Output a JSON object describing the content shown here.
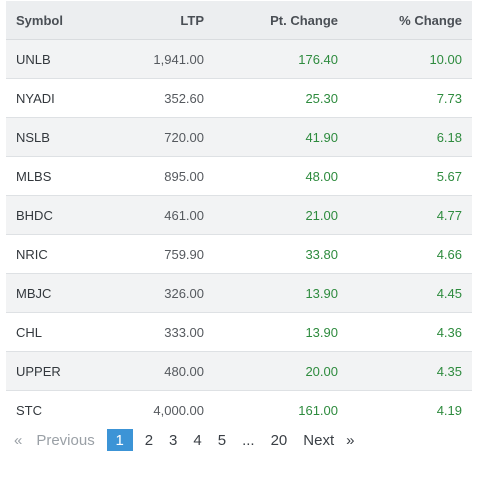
{
  "table": {
    "headers": {
      "symbol": "Symbol",
      "ltp": "LTP",
      "pt_change": "Pt. Change",
      "pct_change": "% Change"
    },
    "rows": [
      {
        "symbol": "UNLB",
        "ltp": "1,941.00",
        "pt_change": "176.40",
        "pct_change": "10.00"
      },
      {
        "symbol": "NYADI",
        "ltp": "352.60",
        "pt_change": "25.30",
        "pct_change": "7.73"
      },
      {
        "symbol": "NSLB",
        "ltp": "720.00",
        "pt_change": "41.90",
        "pct_change": "6.18"
      },
      {
        "symbol": "MLBS",
        "ltp": "895.00",
        "pt_change": "48.00",
        "pct_change": "5.67"
      },
      {
        "symbol": "BHDC",
        "ltp": "461.00",
        "pt_change": "21.00",
        "pct_change": "4.77"
      },
      {
        "symbol": "NRIC",
        "ltp": "759.90",
        "pt_change": "33.80",
        "pct_change": "4.66"
      },
      {
        "symbol": "MBJC",
        "ltp": "326.00",
        "pt_change": "13.90",
        "pct_change": "4.45"
      },
      {
        "symbol": "CHL",
        "ltp": "333.00",
        "pt_change": "13.90",
        "pct_change": "4.36"
      },
      {
        "symbol": "UPPER",
        "ltp": "480.00",
        "pt_change": "20.00",
        "pct_change": "4.35"
      },
      {
        "symbol": "STC",
        "ltp": "4,000.00",
        "pt_change": "161.00",
        "pct_change": "4.19"
      }
    ]
  },
  "pagination": {
    "prev_arrow": "«",
    "previous": "Previous",
    "pages": [
      "1",
      "2",
      "3",
      "4",
      "5"
    ],
    "ellipsis": "...",
    "last_page": "20",
    "next": "Next",
    "next_arrow": "»",
    "current": "1"
  },
  "colors": {
    "positive": "#2e8b3e",
    "active_page": "#3c94d6",
    "header_bg": "#eceef0",
    "stripe_bg": "#f2f3f4"
  }
}
